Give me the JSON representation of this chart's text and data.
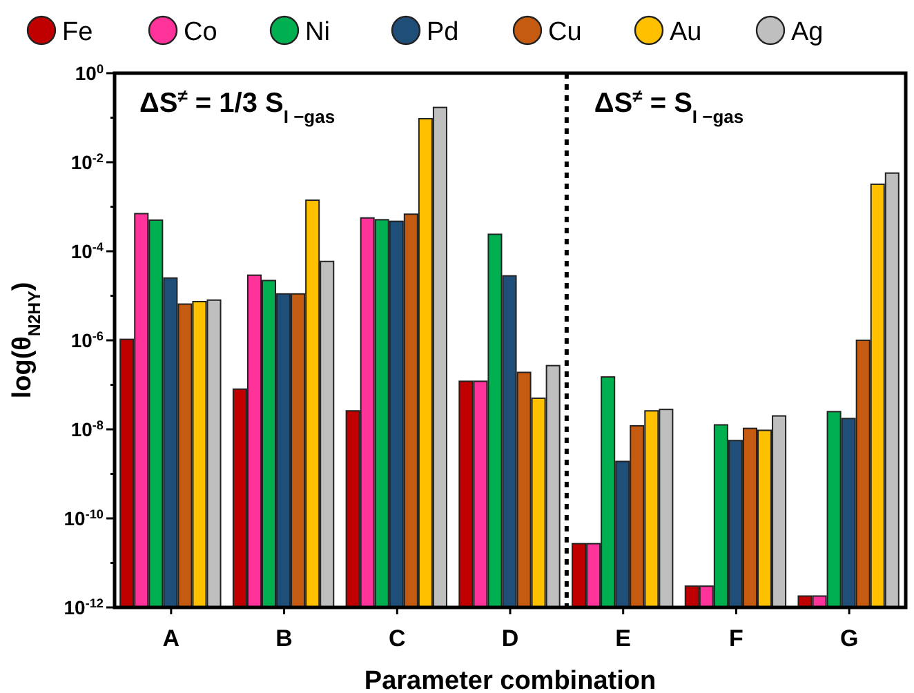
{
  "chart_data": {
    "type": "bar",
    "xlabel": "Parameter combination",
    "ylabel": "log(θ$_{N2HY}$)",
    "categories": [
      "A",
      "B",
      "C",
      "D",
      "E",
      "F",
      "G"
    ],
    "series": [
      {
        "name": "Fe",
        "color": "#c00000",
        "values": [
          1.05e-06,
          8e-08,
          2.6e-08,
          1.2e-07,
          2.7e-11,
          3e-12,
          1.8e-12
        ]
      },
      {
        "name": "Co",
        "color": "#ff3399",
        "values": [
          0.0007,
          2.9e-05,
          0.00056,
          1.2e-07,
          2.7e-11,
          3e-12,
          1.8e-12
        ]
      },
      {
        "name": "Ni",
        "color": "#00b050",
        "values": [
          0.0005,
          2.2e-05,
          0.00051,
          0.00024,
          1.5e-07,
          1.26e-08,
          2.5e-08
        ]
      },
      {
        "name": "Pd",
        "color": "#1f4e79",
        "values": [
          2.5e-05,
          1.1e-05,
          0.00047,
          2.8e-05,
          1.9e-09,
          5.6e-09,
          1.75e-08
        ]
      },
      {
        "name": "Cu",
        "color": "#c55a11",
        "values": [
          6.5e-06,
          1.1e-05,
          0.00068,
          1.9e-07,
          1.2e-08,
          1.05e-08,
          1e-06
        ]
      },
      {
        "name": "Au",
        "color": "#ffc000",
        "values": [
          7.4e-06,
          0.0014,
          0.095,
          5e-08,
          2.6e-08,
          9.5e-09,
          0.0032
        ]
      },
      {
        "name": "Ag",
        "color": "#bfbfbf",
        "values": [
          8e-06,
          5.9e-05,
          0.17,
          2.7e-07,
          2.8e-08,
          2e-08,
          0.0057
        ]
      }
    ],
    "log": true,
    "ylim": [
      1e-12,
      1
    ],
    "yticks": [
      {
        "value": 1e-12,
        "label": "10$^{-12}$"
      },
      {
        "value": 1e-11,
        "label": null
      },
      {
        "value": 1e-10,
        "label": "10$^{-10}$"
      },
      {
        "value": 1e-09,
        "label": null
      },
      {
        "value": 1e-08,
        "label": "10$^{-8}$"
      },
      {
        "value": 1e-07,
        "label": null
      },
      {
        "value": 1e-06,
        "label": "10$^{-6}$"
      },
      {
        "value": 1e-05,
        "label": null
      },
      {
        "value": 0.0001,
        "label": "10$^{-4}$"
      },
      {
        "value": 0.001,
        "label": null
      },
      {
        "value": 0.01,
        "label": "10$^{-2}$"
      },
      {
        "value": 0.1,
        "label": null
      },
      {
        "value": 1,
        "label": "10$^{0}$"
      }
    ],
    "annotations": [
      "ΔS$^{≠}$ = 1/3 S$_{I −gas}$",
      "ΔS$^{≠}$ = S$_{I −gas}$"
    ],
    "legend": "top"
  }
}
